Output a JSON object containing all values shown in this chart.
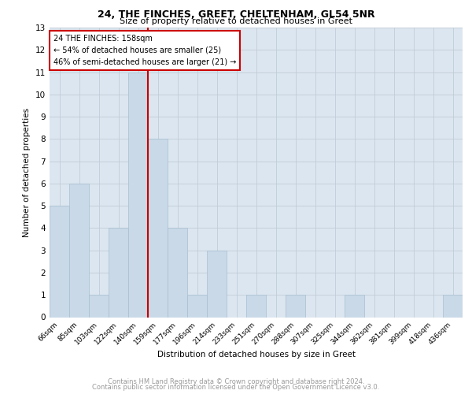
{
  "title": "24, THE FINCHES, GREET, CHELTENHAM, GL54 5NR",
  "subtitle": "Size of property relative to detached houses in Greet",
  "xlabel": "Distribution of detached houses by size in Greet",
  "ylabel": "Number of detached properties",
  "categories": [
    "66sqm",
    "85sqm",
    "103sqm",
    "122sqm",
    "140sqm",
    "159sqm",
    "177sqm",
    "196sqm",
    "214sqm",
    "233sqm",
    "251sqm",
    "270sqm",
    "288sqm",
    "307sqm",
    "325sqm",
    "344sqm",
    "362sqm",
    "381sqm",
    "399sqm",
    "418sqm",
    "436sqm"
  ],
  "values": [
    5,
    6,
    1,
    4,
    11,
    8,
    4,
    1,
    3,
    0,
    1,
    0,
    1,
    0,
    0,
    1,
    0,
    0,
    0,
    0,
    1
  ],
  "bar_color": "#c9d9e8",
  "bar_edge_color": "#a8bfd0",
  "vline_x": 4.5,
  "vline_color": "#cc0000",
  "annotation_lines": [
    "24 THE FINCHES: 158sqm",
    "← 54% of detached houses are smaller (25)",
    "46% of semi-detached houses are larger (21) →"
  ],
  "box_edge_color": "#cc0000",
  "ylim": [
    0,
    13
  ],
  "yticks": [
    0,
    1,
    2,
    3,
    4,
    5,
    6,
    7,
    8,
    9,
    10,
    11,
    12,
    13
  ],
  "grid_color": "#c0ccd8",
  "background_color": "#dce6f0",
  "footer1": "Contains HM Land Registry data © Crown copyright and database right 2024.",
  "footer2": "Contains public sector information licensed under the Open Government Licence v3.0."
}
